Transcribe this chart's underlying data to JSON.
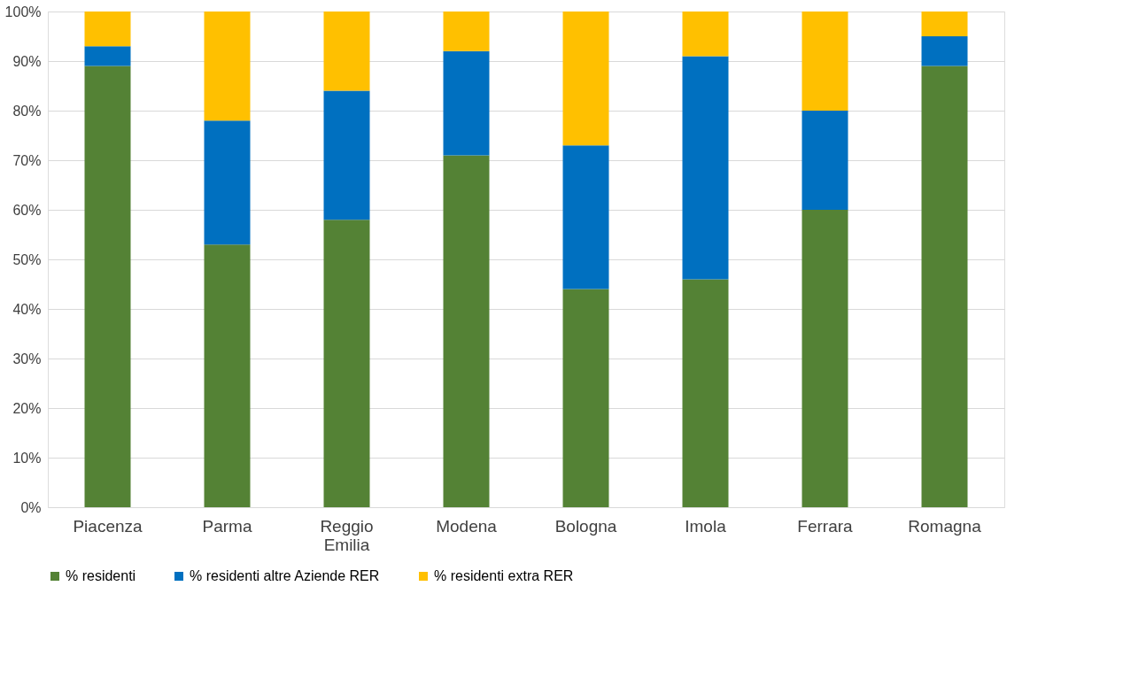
{
  "chart_data": {
    "type": "bar",
    "stacked": true,
    "categories": [
      "Piacenza",
      "Parma",
      "Reggio Emilia",
      "Modena",
      "Bologna",
      "Imola",
      "Ferrara",
      "Romagna"
    ],
    "series": [
      {
        "name": "% residenti",
        "color": "#548235",
        "values": [
          89,
          53,
          58,
          71,
          44,
          46,
          60,
          89
        ]
      },
      {
        "name": "% residenti altre Aziende RER",
        "color": "#0070c0",
        "values": [
          4,
          25,
          26,
          21,
          29,
          45,
          20,
          6
        ]
      },
      {
        "name": "% residenti extra RER",
        "color": "#ffc000",
        "values": [
          7,
          22,
          16,
          8,
          27,
          9,
          20,
          5
        ]
      }
    ],
    "ylim": [
      0,
      100
    ],
    "yticks": [
      {
        "value": 0,
        "label": "0%"
      },
      {
        "value": 10,
        "label": "10%"
      },
      {
        "value": 20,
        "label": "20%"
      },
      {
        "value": 30,
        "label": "30%"
      },
      {
        "value": 40,
        "label": "40%"
      },
      {
        "value": 50,
        "label": "50%"
      },
      {
        "value": 60,
        "label": "60%"
      },
      {
        "value": 70,
        "label": "70%"
      },
      {
        "value": 80,
        "label": "80%"
      },
      {
        "value": 90,
        "label": "90%"
      },
      {
        "value": 100,
        "label": "100%"
      }
    ],
    "grid": "y",
    "legend": "bottom"
  }
}
